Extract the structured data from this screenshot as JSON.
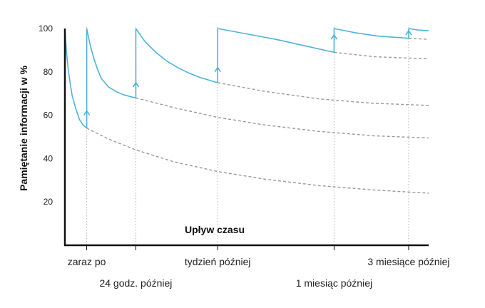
{
  "chart_data": {
    "type": "line",
    "title": "",
    "ylabel": "Pamiętanie informacji w %",
    "xlabel": "Upływ czasu",
    "ylim": [
      0,
      100
    ],
    "yticks": [
      20,
      40,
      60,
      80,
      100
    ],
    "xlim": [
      0,
      100
    ],
    "grid": false,
    "categories": [
      {
        "label": "zaraz po",
        "x": 6,
        "row": 1
      },
      {
        "label": "24 godz. później",
        "x": 19.5,
        "row": 2
      },
      {
        "label": "tydzień później",
        "x": 42,
        "row": 1
      },
      {
        "label": "1 miesiąc później",
        "x": 74,
        "row": 2
      },
      {
        "label": "3 miesiące później",
        "x": 94.5,
        "row": 1
      }
    ],
    "colors": {
      "main": "#4fb3d6",
      "decay": "#999999",
      "guide": "#b5b5b5",
      "axis": "#111111"
    },
    "review_arrows": [
      {
        "x": 6,
        "tip": 62
      },
      {
        "x": 19.5,
        "tip": 75
      },
      {
        "x": 42,
        "tip": 82
      },
      {
        "x": 74,
        "tip": 97
      },
      {
        "x": 94.5,
        "tip": 99
      }
    ],
    "series": [
      {
        "style": "main",
        "segments": [
          [
            [
              0,
              100
            ],
            [
              0.5,
              88
            ],
            [
              1,
              80
            ],
            [
              1.5,
              74
            ],
            [
              2,
              69
            ],
            [
              3,
              63
            ],
            [
              4,
              58
            ],
            [
              5,
              55.5
            ],
            [
              6,
              54
            ]
          ],
          [
            [
              6,
              100
            ],
            [
              7,
              92
            ],
            [
              8,
              86
            ],
            [
              9,
              81
            ],
            [
              10,
              77
            ],
            [
              12,
              73
            ],
            [
              14,
              71
            ],
            [
              16,
              69.5
            ],
            [
              18,
              68.6
            ],
            [
              19.5,
              68
            ]
          ],
          [
            [
              19.5,
              100
            ],
            [
              22,
              94
            ],
            [
              25,
              89
            ],
            [
              28,
              85
            ],
            [
              31,
              82
            ],
            [
              34,
              79.5
            ],
            [
              37,
              77.5
            ],
            [
              40,
              76
            ],
            [
              42,
              75
            ]
          ],
          [
            [
              42,
              100
            ],
            [
              50,
              97.5
            ],
            [
              58,
              95
            ],
            [
              66,
              92
            ],
            [
              74,
              89
            ]
          ],
          [
            [
              74,
              100
            ],
            [
              80,
              98
            ],
            [
              86,
              96.5
            ],
            [
              94.5,
              95.5
            ]
          ],
          [
            [
              94.5,
              100
            ],
            [
              97,
              99.3
            ],
            [
              100,
              99
            ]
          ]
        ]
      },
      {
        "style": "decay",
        "segments": [
          [
            [
              6,
              54
            ],
            [
              12,
              49
            ],
            [
              19.5,
              44
            ],
            [
              30,
              38.5
            ],
            [
              42,
              34
            ],
            [
              55,
              30.5
            ],
            [
              70,
              27.5
            ],
            [
              85,
              25.5
            ],
            [
              100,
              24
            ]
          ],
          [
            [
              19.5,
              68
            ],
            [
              30,
              63.5
            ],
            [
              42,
              59
            ],
            [
              55,
              55.5
            ],
            [
              70,
              52.5
            ],
            [
              85,
              50.5
            ],
            [
              100,
              49.5
            ]
          ],
          [
            [
              42,
              75
            ],
            [
              55,
              71
            ],
            [
              70,
              67.5
            ],
            [
              85,
              65.5
            ],
            [
              100,
              64.5
            ]
          ],
          [
            [
              74,
              89
            ],
            [
              85,
              87
            ],
            [
              100,
              86
            ]
          ],
          [
            [
              94.5,
              95.5
            ],
            [
              100,
              95
            ]
          ]
        ]
      }
    ]
  }
}
